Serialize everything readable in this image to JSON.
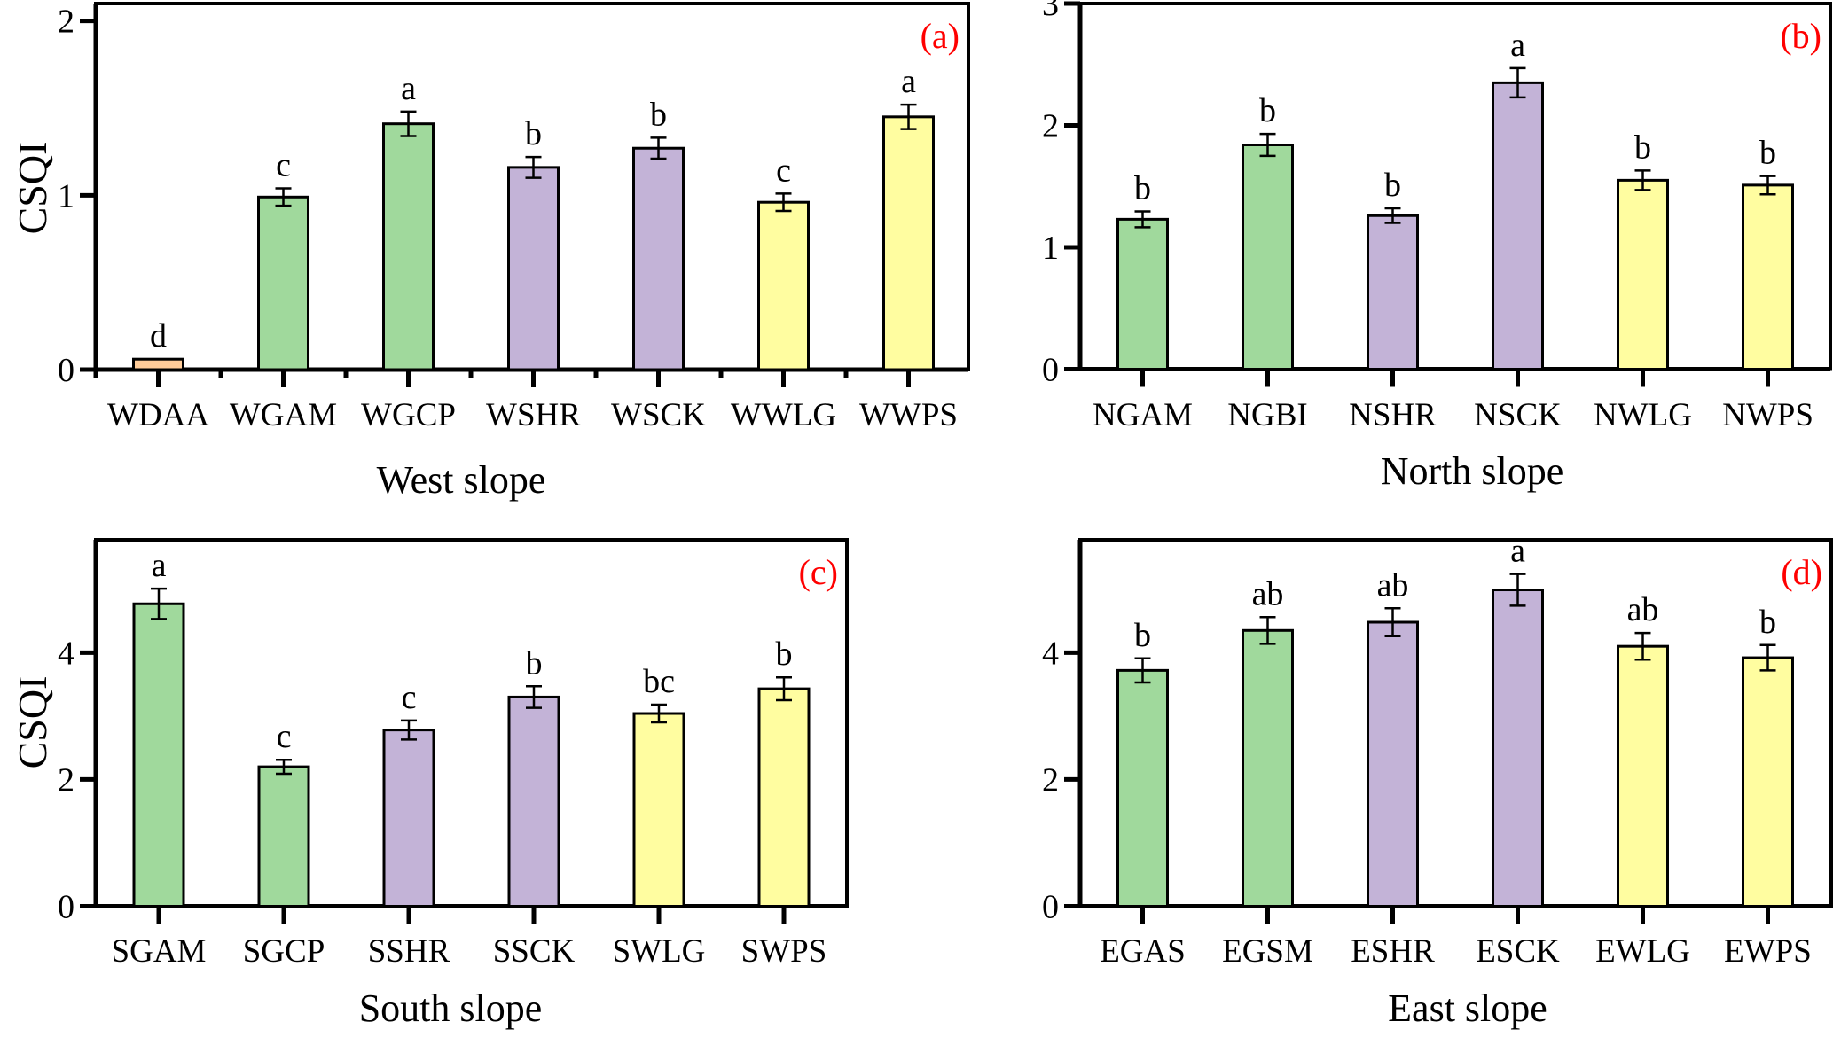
{
  "figure": {
    "y_axis_label": "CSQI"
  },
  "colors": {
    "grassland": "#A0D99C",
    "shrub": "#C3B3D7",
    "woodland": "#FFFDA0",
    "bare": "#FFCC99",
    "panel_tag": "#FF0000",
    "axis": "#000000"
  },
  "chart_data": [
    {
      "type": "bar",
      "panel_tag": "(a)",
      "title": "",
      "xlabel": "West slope",
      "ylabel": "CSQI",
      "ylim": [
        0,
        2.1
      ],
      "yticks": [
        0,
        1,
        2
      ],
      "ytick_labels": [
        "0",
        "1",
        "2"
      ],
      "minor_xticks": true,
      "grid": false,
      "categories": [
        "WDAA",
        "WGAM",
        "WGCP",
        "WSHR",
        "WSCK",
        "WWLG",
        "WWPS"
      ],
      "values": [
        0.06,
        0.99,
        1.41,
        1.16,
        1.27,
        0.96,
        1.45
      ],
      "errors": [
        0.0,
        0.05,
        0.07,
        0.06,
        0.06,
        0.05,
        0.07
      ],
      "significance": [
        "d",
        "c",
        "a",
        "b",
        "b",
        "c",
        "a"
      ],
      "bar_colors": [
        "bare",
        "grassland",
        "grassland",
        "shrub",
        "shrub",
        "woodland",
        "woodland"
      ]
    },
    {
      "type": "bar",
      "panel_tag": "(b)",
      "title": "",
      "xlabel": "North slope",
      "ylabel": "",
      "ylim": [
        0,
        3.0
      ],
      "yticks": [
        0,
        1,
        2,
        3
      ],
      "ytick_labels": [
        "0",
        "1",
        "2",
        "3"
      ],
      "minor_xticks": false,
      "grid": false,
      "categories": [
        "NGAM",
        "NGBI",
        "NSHR",
        "NSCK",
        "NWLG",
        "NWPS"
      ],
      "values": [
        1.23,
        1.84,
        1.26,
        2.35,
        1.55,
        1.51
      ],
      "errors": [
        0.065,
        0.09,
        0.06,
        0.12,
        0.08,
        0.075
      ],
      "significance": [
        "b",
        "b",
        "b",
        "a",
        "b",
        "b"
      ],
      "bar_colors": [
        "grassland",
        "grassland",
        "shrub",
        "shrub",
        "woodland",
        "woodland"
      ]
    },
    {
      "type": "bar",
      "panel_tag": "(c)",
      "title": "",
      "xlabel": "South slope",
      "ylabel": "CSQI",
      "ylim": [
        0,
        5.78
      ],
      "yticks": [
        0,
        2,
        4
      ],
      "ytick_labels": [
        "0",
        "2",
        "4"
      ],
      "minor_xticks": false,
      "grid": false,
      "categories": [
        "SGAM",
        "SGCP",
        "SSHR",
        "SSCK",
        "SWLG",
        "SWPS"
      ],
      "values": [
        4.77,
        2.2,
        2.78,
        3.3,
        3.04,
        3.43
      ],
      "errors": [
        0.24,
        0.11,
        0.15,
        0.17,
        0.14,
        0.18
      ],
      "significance": [
        "a",
        "c",
        "c",
        "b",
        "bc",
        "b"
      ],
      "bar_colors": [
        "grassland",
        "grassland",
        "shrub",
        "shrub",
        "woodland",
        "woodland"
      ]
    },
    {
      "type": "bar",
      "panel_tag": "(d)",
      "title": "",
      "xlabel": "East slope",
      "ylabel": "",
      "ylim": [
        0,
        5.78
      ],
      "yticks": [
        0,
        2,
        4
      ],
      "ytick_labels": [
        "0",
        "2",
        "4"
      ],
      "minor_xticks": false,
      "grid": false,
      "categories": [
        "EGAS",
        "EGSM",
        "ESHR",
        "ESCK",
        "EWLG",
        "EWPS"
      ],
      "values": [
        3.72,
        4.35,
        4.48,
        4.99,
        4.1,
        3.92
      ],
      "errors": [
        0.19,
        0.21,
        0.22,
        0.25,
        0.21,
        0.2
      ],
      "significance": [
        "b",
        "ab",
        "ab",
        "a",
        "ab",
        "b"
      ],
      "bar_colors": [
        "grassland",
        "grassland",
        "shrub",
        "shrub",
        "woodland",
        "woodland"
      ]
    }
  ]
}
